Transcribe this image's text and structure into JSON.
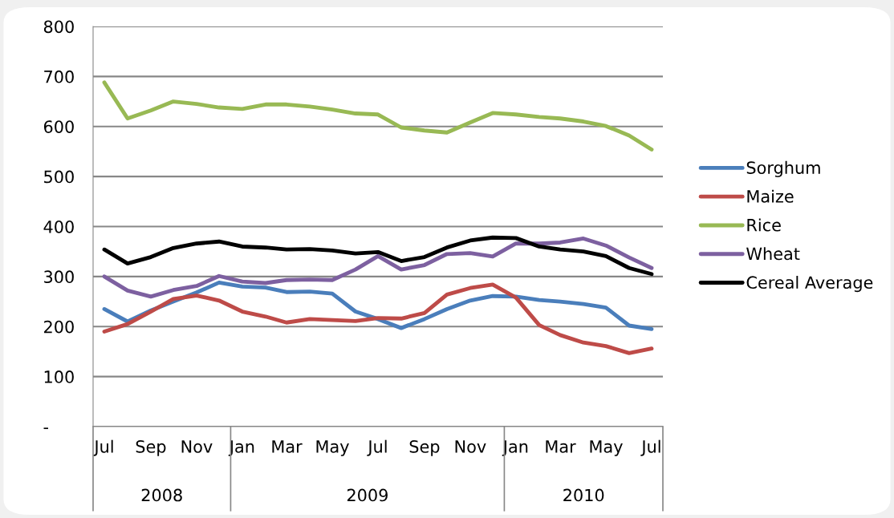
{
  "chart_data": {
    "type": "line",
    "x": [
      "2008-07",
      "2008-08",
      "2008-09",
      "2008-10",
      "2008-11",
      "2008-12",
      "2009-01",
      "2009-02",
      "2009-03",
      "2009-04",
      "2009-05",
      "2009-06",
      "2009-07",
      "2009-08",
      "2009-09",
      "2009-10",
      "2009-11",
      "2009-12",
      "2010-01",
      "2010-02",
      "2010-03",
      "2010-04",
      "2010-05",
      "2010-06",
      "2010-07"
    ],
    "series": [
      {
        "name": "Sorghum",
        "color": "#4a7ebb",
        "values": [
          235,
          210,
          232,
          250,
          268,
          288,
          280,
          278,
          269,
          270,
          266,
          230,
          215,
          197,
          215,
          235,
          252,
          261,
          260,
          253,
          250,
          245,
          238,
          202,
          195
        ]
      },
      {
        "name": "Maize",
        "color": "#be4b48",
        "values": [
          190,
          205,
          230,
          255,
          262,
          252,
          230,
          220,
          208,
          215,
          213,
          211,
          217,
          216,
          227,
          264,
          277,
          284,
          258,
          203,
          183,
          168,
          161,
          147,
          156
        ]
      },
      {
        "name": "Rice",
        "color": "#98b954",
        "values": [
          688,
          616,
          632,
          650,
          645,
          638,
          635,
          644,
          644,
          640,
          634,
          626,
          624,
          598,
          592,
          588,
          608,
          627,
          624,
          619,
          616,
          610,
          601,
          582,
          554
        ]
      },
      {
        "name": "Wheat",
        "color": "#7d60a0",
        "values": [
          300,
          272,
          260,
          273,
          281,
          301,
          290,
          287,
          293,
          294,
          293,
          314,
          341,
          314,
          323,
          345,
          347,
          340,
          366,
          366,
          368,
          376,
          362,
          338,
          317
        ]
      },
      {
        "name": "Cereal Average",
        "color": "#000000",
        "values": [
          354,
          326,
          339,
          357,
          366,
          370,
          360,
          358,
          354,
          355,
          352,
          346,
          349,
          331,
          339,
          358,
          372,
          378,
          377,
          360,
          354,
          350,
          341,
          317,
          305
        ]
      }
    ],
    "xlim": [
      "2008-06-16",
      "2010-07-16"
    ],
    "xticks": [
      {
        "value": "2008-07",
        "label": "Jul"
      },
      {
        "value": "2008-09",
        "label": "Sep"
      },
      {
        "value": "2008-11",
        "label": "Nov"
      },
      {
        "value": "2009-01",
        "label": "Jan"
      },
      {
        "value": "2009-03",
        "label": "Mar"
      },
      {
        "value": "2009-05",
        "label": "May"
      },
      {
        "value": "2009-07",
        "label": "Jul"
      },
      {
        "value": "2009-09",
        "label": "Sep"
      },
      {
        "value": "2009-11",
        "label": "Nov"
      },
      {
        "value": "2010-01",
        "label": "Jan"
      },
      {
        "value": "2010-03",
        "label": "Mar"
      },
      {
        "value": "2010-05",
        "label": "May"
      },
      {
        "value": "2010-07",
        "label": "Jul"
      }
    ],
    "ylim": [
      0,
      800
    ],
    "yticks": [
      {
        "value": 0,
        "label": "-"
      },
      100,
      200,
      300,
      400,
      500,
      600,
      700,
      800
    ],
    "annotations": [
      "2008",
      "2009",
      "2010"
    ],
    "grid": "y",
    "legend": "right",
    "marker": "none",
    "line_style": "solid"
  }
}
